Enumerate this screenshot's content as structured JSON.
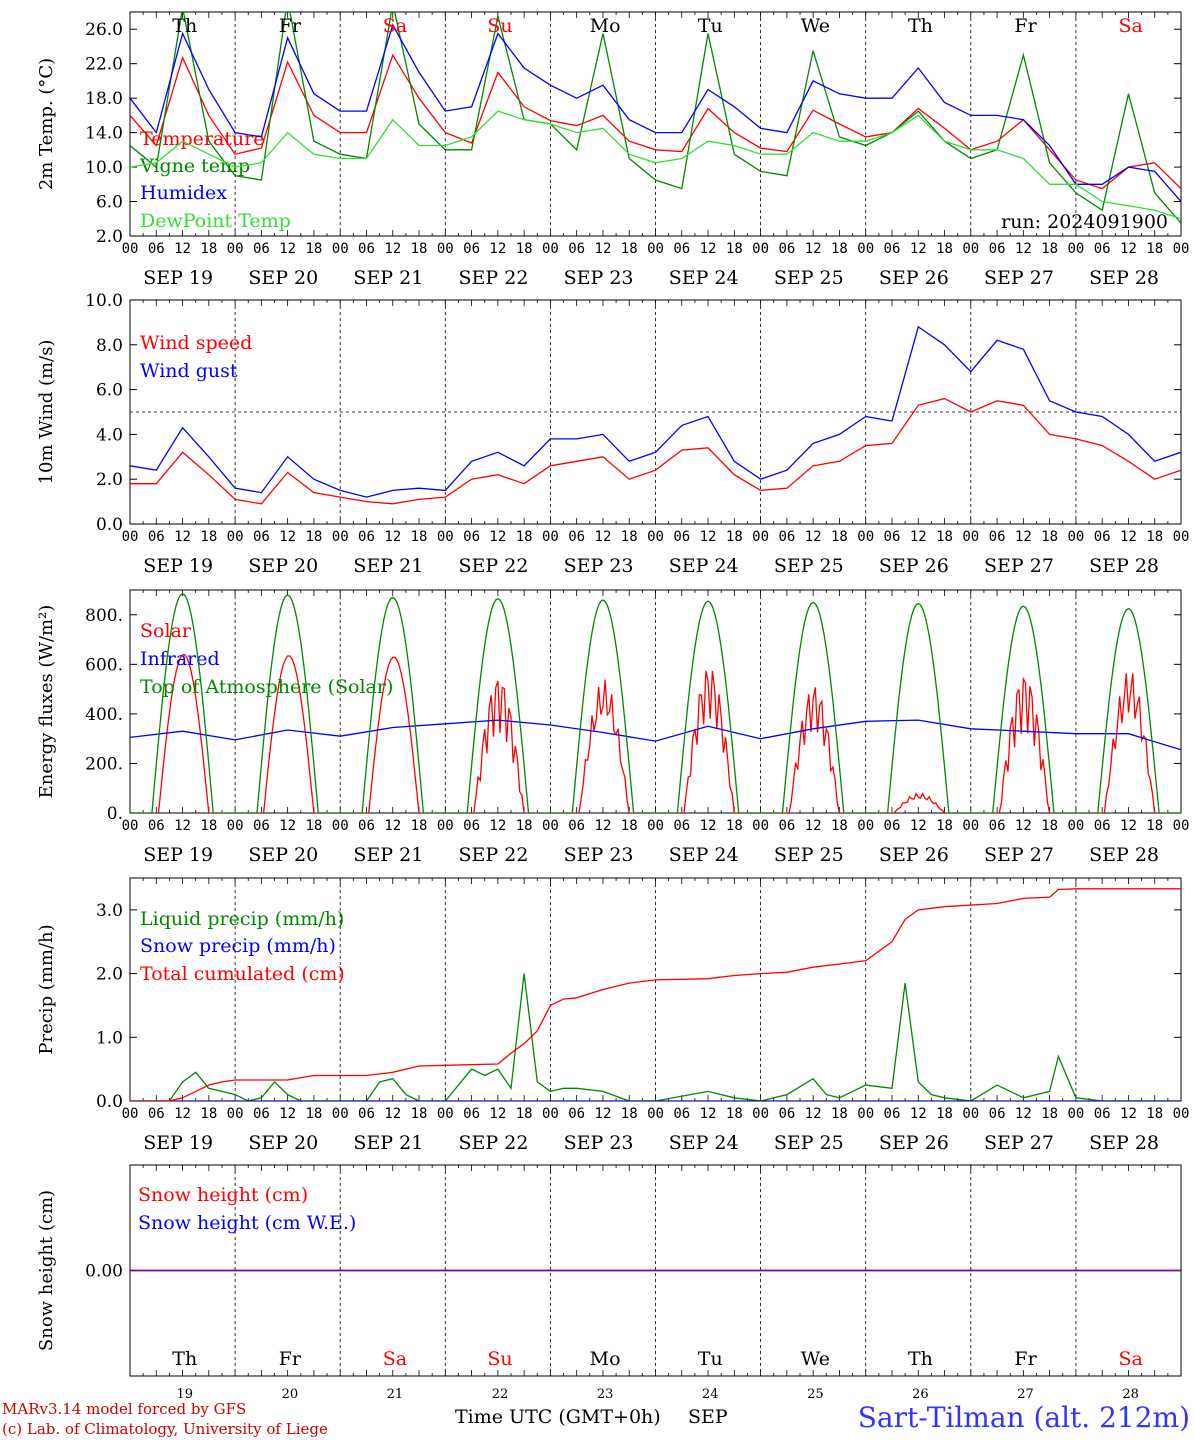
{
  "colors": {
    "red": "#ff0000",
    "darkgreen": "#008800",
    "blue": "#0000ff",
    "lightgreen": "#33dd33",
    "purple": "#7700aa",
    "axis": "#000000",
    "footer_left": "#cc0000",
    "footer_right": "#3333ff"
  },
  "x_axis": {
    "hour_labels": [
      "00",
      "06",
      "12",
      "18"
    ],
    "final_label": "00",
    "dates": [
      "SEP 19",
      "SEP 20",
      "SEP 21",
      "SEP 22",
      "SEP 23",
      "SEP 24",
      "SEP 25",
      "SEP 26",
      "SEP 27",
      "SEP 28"
    ],
    "weekdays": [
      "Th",
      "Fr",
      "Sa",
      "Su",
      "Mo",
      "Tu",
      "We",
      "Th",
      "Fr",
      "Sa"
    ],
    "weekday_colors": [
      "#000000",
      "#000000",
      "#ff0000",
      "#ff0000",
      "#000000",
      "#000000",
      "#000000",
      "#000000",
      "#000000",
      "#ff0000"
    ],
    "day_numbers": [
      "19",
      "20",
      "21",
      "22",
      "23",
      "24",
      "25",
      "26",
      "27",
      "28"
    ],
    "title": "Time UTC (GMT+0h)",
    "month": "SEP"
  },
  "footer": {
    "line1": "MARv3.14 model forced by GFS",
    "line2": "(c) Lab. of Climatology, University of Liege",
    "station": "Sart-Tilman (alt. 212m)"
  },
  "chart_data": [
    {
      "type": "line",
      "ylabel": "2m Temp. (°C)",
      "ylim": [
        2,
        28
      ],
      "yticks": [
        2,
        6,
        10,
        14,
        18,
        22,
        26
      ],
      "ytick_labels": [
        "2.0",
        "6.0",
        "10.0",
        "14.0",
        "18.0",
        "22.0",
        "26.0"
      ],
      "annotation": "run: 2024091900",
      "series": [
        {
          "name": "Temperature",
          "color": "#ff0000",
          "x": [
            0,
            6,
            12,
            18,
            24,
            30,
            36,
            42,
            48,
            54,
            60,
            66,
            72,
            78,
            84,
            90,
            96,
            102,
            108,
            114,
            120,
            126,
            132,
            138,
            144,
            150,
            156,
            162,
            168,
            174,
            180,
            186,
            192,
            198,
            204,
            210,
            216,
            222,
            228,
            234,
            240
          ],
          "y": [
            16,
            12.5,
            22.7,
            16,
            11.5,
            12.2,
            22.2,
            16,
            14,
            14,
            23,
            18,
            14,
            12.8,
            21,
            17,
            15.4,
            14.8,
            16,
            13,
            12,
            11.8,
            16.8,
            14,
            12.2,
            11.8,
            16.6,
            15,
            13.5,
            14,
            16.8,
            14.5,
            12,
            13,
            15.5,
            12,
            8.5,
            7.5,
            10,
            10.5,
            7.5
          ]
        },
        {
          "name": "Vigne temp",
          "color": "#008800",
          "x": [
            0,
            6,
            12,
            18,
            24,
            30,
            36,
            42,
            48,
            54,
            60,
            66,
            72,
            78,
            84,
            90,
            96,
            102,
            108,
            114,
            120,
            126,
            132,
            138,
            144,
            150,
            156,
            162,
            168,
            174,
            180,
            186,
            192,
            198,
            204,
            210,
            216,
            222,
            228,
            234,
            240
          ],
          "y": [
            12.5,
            10,
            28.5,
            13,
            9,
            8.5,
            29.5,
            13,
            11.5,
            11,
            29,
            15,
            12,
            12,
            27.5,
            15.5,
            15,
            12,
            25.5,
            11,
            8.5,
            7.5,
            25.5,
            11.5,
            9.5,
            9,
            23.5,
            13.5,
            12.5,
            14,
            16.5,
            13,
            11,
            12,
            23,
            10.5,
            7,
            5,
            18.5,
            7,
            3.5
          ]
        },
        {
          "name": "Humidex",
          "color": "#0000ff",
          "x": [
            0,
            6,
            12,
            18,
            24,
            30,
            36,
            42,
            48,
            54,
            60,
            66,
            72,
            78,
            84,
            90,
            96,
            102,
            108,
            114,
            120,
            126,
            132,
            138,
            144,
            150,
            156,
            162,
            168,
            174,
            180,
            186,
            192,
            198,
            204,
            210,
            216,
            222,
            228,
            234,
            240
          ],
          "y": [
            18,
            14,
            25.5,
            19,
            14,
            13.5,
            25,
            18.5,
            16.5,
            16.5,
            26.5,
            21,
            16.5,
            17,
            25.5,
            21.5,
            19.5,
            18,
            19.5,
            15.5,
            14,
            14,
            19,
            17,
            14.5,
            14,
            20,
            18.5,
            18,
            18,
            21.5,
            17.5,
            16,
            16,
            15.5,
            12.5,
            8,
            8,
            10,
            9.5,
            6
          ]
        },
        {
          "name": "DewPoint Temp",
          "color": "#33dd33",
          "x": [
            0,
            6,
            12,
            18,
            24,
            30,
            36,
            42,
            48,
            54,
            60,
            66,
            72,
            78,
            84,
            90,
            96,
            102,
            108,
            114,
            120,
            126,
            132,
            138,
            144,
            150,
            156,
            162,
            168,
            174,
            180,
            186,
            192,
            198,
            204,
            210,
            216,
            222,
            228,
            234,
            240
          ],
          "y": [
            10,
            10.5,
            13,
            11.5,
            10,
            10.5,
            14,
            11.5,
            11,
            11,
            15.5,
            12.5,
            12.5,
            13.5,
            16.5,
            15.5,
            15,
            14,
            14.5,
            11.5,
            10.5,
            11,
            13,
            12.5,
            11.5,
            11.5,
            14,
            13,
            13,
            14,
            16,
            13,
            12,
            12,
            11,
            8,
            8,
            6,
            5.5,
            5,
            4
          ]
        }
      ]
    },
    {
      "type": "line",
      "ylabel": "10m Wind (m/s)",
      "ylim": [
        0,
        10
      ],
      "yticks": [
        0,
        2,
        4,
        6,
        8,
        10
      ],
      "ytick_labels": [
        "0.0",
        "2.0",
        "4.0",
        "6.0",
        "8.0",
        "10.0"
      ],
      "reference_line": 5,
      "series": [
        {
          "name": "Wind speed",
          "color": "#ff0000",
          "x": [
            0,
            6,
            12,
            18,
            24,
            30,
            36,
            42,
            48,
            54,
            60,
            66,
            72,
            78,
            84,
            90,
            96,
            102,
            108,
            114,
            120,
            126,
            132,
            138,
            144,
            150,
            156,
            162,
            168,
            174,
            180,
            186,
            192,
            198,
            204,
            210,
            216,
            222,
            228,
            234,
            240
          ],
          "y": [
            1.8,
            1.8,
            3.2,
            2.2,
            1.1,
            0.9,
            2.3,
            1.4,
            1.2,
            1.0,
            0.9,
            1.1,
            1.2,
            2.0,
            2.2,
            1.8,
            2.6,
            2.8,
            3.0,
            2.0,
            2.4,
            3.3,
            3.4,
            2.2,
            1.5,
            1.6,
            2.6,
            2.8,
            3.5,
            3.6,
            5.3,
            5.6,
            5.0,
            5.5,
            5.3,
            4.0,
            3.8,
            3.5,
            2.8,
            2.0,
            2.4
          ]
        },
        {
          "name": "Wind gust",
          "color": "#0000ff",
          "x": [
            0,
            6,
            12,
            18,
            24,
            30,
            36,
            42,
            48,
            54,
            60,
            66,
            72,
            78,
            84,
            90,
            96,
            102,
            108,
            114,
            120,
            126,
            132,
            138,
            144,
            150,
            156,
            162,
            168,
            174,
            180,
            186,
            192,
            198,
            204,
            210,
            216,
            222,
            228,
            234,
            240
          ],
          "y": [
            2.6,
            2.4,
            4.3,
            3.0,
            1.6,
            1.4,
            3.0,
            2.0,
            1.5,
            1.2,
            1.5,
            1.6,
            1.5,
            2.8,
            3.2,
            2.6,
            3.8,
            3.8,
            4.0,
            2.8,
            3.2,
            4.4,
            4.8,
            2.8,
            2.0,
            2.4,
            3.6,
            4.0,
            4.8,
            4.6,
            8.8,
            8.0,
            6.8,
            8.2,
            7.8,
            5.5,
            5.0,
            4.8,
            4.0,
            2.8,
            3.2
          ]
        }
      ]
    },
    {
      "type": "line",
      "ylabel": "Energy fluxes (W/m²)",
      "ylim": [
        0,
        900
      ],
      "yticks": [
        0,
        200,
        400,
        600,
        800
      ],
      "ytick_labels": [
        "0.",
        "200.",
        "400.",
        "600.",
        "800."
      ],
      "series": [
        {
          "name": "Solar",
          "color": "#ff0000",
          "daily_peaks": [
            640,
            635,
            630,
            560,
            540,
            600,
            520,
            80,
            570,
            580
          ]
        },
        {
          "name": "Infrared",
          "color": "#0000ff",
          "x": [
            0,
            12,
            24,
            36,
            48,
            60,
            72,
            84,
            96,
            108,
            120,
            132,
            144,
            156,
            168,
            180,
            192,
            204,
            216,
            228,
            240
          ],
          "y": [
            305,
            330,
            295,
            335,
            310,
            345,
            360,
            375,
            355,
            325,
            290,
            350,
            300,
            340,
            370,
            375,
            340,
            330,
            320,
            320,
            255
          ]
        },
        {
          "name": "Top of Atmosphere (Solar)",
          "color": "#008800",
          "daily_peaks": [
            885,
            880,
            870,
            865,
            860,
            855,
            850,
            845,
            835,
            825
          ]
        }
      ]
    },
    {
      "type": "line",
      "ylabel": "Precip (mm/h)",
      "ylim": [
        0,
        3.5
      ],
      "yticks": [
        0,
        1,
        2,
        3
      ],
      "ytick_labels": [
        "0.0",
        "1.0",
        "2.0",
        "3.0"
      ],
      "series": [
        {
          "name": "Liquid precip (mm/h)",
          "color": "#008800",
          "x": [
            0,
            6,
            9,
            12,
            15,
            18,
            21,
            24,
            27,
            30,
            33,
            36,
            39,
            42,
            48,
            54,
            57,
            60,
            63,
            66,
            72,
            78,
            81,
            84,
            87,
            90,
            93,
            96,
            99,
            102,
            108,
            114,
            120,
            132,
            138,
            144,
            150,
            156,
            159,
            162,
            168,
            174,
            177,
            180,
            183,
            186,
            192,
            198,
            204,
            210,
            212,
            216,
            222,
            240
          ],
          "y": [
            0,
            0,
            0,
            0.3,
            0.45,
            0.2,
            0.15,
            0.1,
            0,
            0.05,
            0.3,
            0.1,
            0,
            0,
            0,
            0,
            0.3,
            0.35,
            0.1,
            0,
            0,
            0.5,
            0.4,
            0.5,
            0.2,
            2.0,
            0.3,
            0.15,
            0.2,
            0.2,
            0.15,
            0,
            0,
            0.15,
            0.05,
            0,
            0.1,
            0.35,
            0.1,
            0.05,
            0.25,
            0.2,
            1.85,
            0.3,
            0.1,
            0.05,
            0,
            0.25,
            0.05,
            0.15,
            0.7,
            0.05,
            0,
            0
          ]
        },
        {
          "name": "Snow precip (mm/h)",
          "color": "#0000ff",
          "x": [
            0,
            240
          ],
          "y": [
            0,
            0
          ]
        },
        {
          "name": "Total cumulated (cm)",
          "color": "#ff0000",
          "x": [
            0,
            9,
            12,
            15,
            18,
            21,
            24,
            36,
            42,
            54,
            60,
            66,
            72,
            84,
            87,
            90,
            93,
            96,
            99,
            102,
            108,
            114,
            120,
            132,
            138,
            144,
            150,
            156,
            162,
            168,
            174,
            177,
            180,
            186,
            198,
            204,
            210,
            212,
            216,
            240
          ],
          "y": [
            0,
            0,
            0.05,
            0.15,
            0.25,
            0.3,
            0.33,
            0.33,
            0.4,
            0.4,
            0.45,
            0.55,
            0.56,
            0.58,
            0.75,
            0.9,
            1.1,
            1.5,
            1.6,
            1.62,
            1.75,
            1.85,
            1.9,
            1.92,
            1.97,
            2.0,
            2.02,
            2.1,
            2.15,
            2.2,
            2.5,
            2.85,
            3.0,
            3.05,
            3.1,
            3.18,
            3.2,
            3.32,
            3.33,
            3.33
          ]
        }
      ]
    },
    {
      "type": "line",
      "ylabel": "Snow height (cm)",
      "ylim": [
        -1,
        1
      ],
      "yticks": [
        0
      ],
      "ytick_labels": [
        "0.00"
      ],
      "series": [
        {
          "name": "Snow height (cm)",
          "color": "#ff0000",
          "x": [
            0,
            240
          ],
          "y": [
            0,
            0
          ]
        },
        {
          "name": "Snow height (cm W.E.)",
          "color": "#0000ff",
          "x": [
            0,
            240
          ],
          "y": [
            0,
            0
          ]
        }
      ]
    }
  ]
}
